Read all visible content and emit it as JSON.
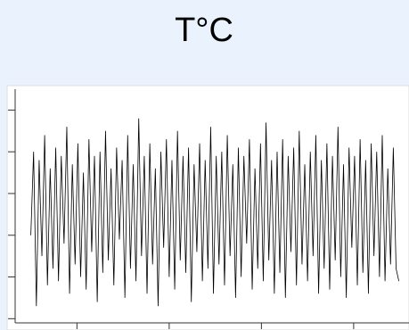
{
  "chart_data": {
    "type": "line",
    "title": "T°C",
    "color": "#000000",
    "x": [
      50,
      53,
      56,
      59,
      62,
      65,
      68,
      71,
      74,
      77,
      80,
      83,
      86,
      89,
      92,
      95,
      98,
      101,
      104,
      107,
      110,
      113,
      116,
      119,
      122,
      125,
      128,
      131,
      134,
      137,
      140,
      143,
      146,
      149,
      152,
      155,
      158,
      161,
      164,
      167,
      170,
      173,
      176,
      179,
      182,
      185,
      188,
      191,
      194,
      197,
      200,
      203,
      206,
      209,
      212,
      215,
      218,
      221,
      224,
      227,
      230,
      233,
      236,
      239,
      242,
      245,
      248,
      251,
      254,
      257,
      260,
      263,
      266,
      269,
      272,
      275,
      278,
      281,
      284,
      287,
      290,
      293,
      296,
      299,
      302,
      305,
      308,
      311,
      314,
      317,
      320,
      323,
      326,
      329,
      332,
      335,
      338,
      341,
      344,
      347,
      350,
      353,
      356,
      359,
      362,
      365,
      368,
      371,
      374,
      377,
      380,
      383,
      386,
      389,
      392,
      395,
      398,
      401,
      404,
      407,
      410,
      413,
      416,
      419,
      422,
      425,
      428,
      431,
      434,
      437,
      440,
      443,
      446,
      449
    ],
    "values": [
      2.0,
      4.0,
      0.3,
      3.8,
      1.5,
      4.4,
      0.8,
      3.6,
      1.2,
      4.1,
      0.9,
      3.9,
      1.8,
      4.6,
      0.6,
      3.7,
      1.3,
      4.2,
      1.0,
      3.5,
      0.7,
      4.3,
      1.6,
      3.9,
      0.4,
      4.0,
      1.1,
      4.5,
      1.4,
      3.6,
      0.8,
      4.1,
      1.9,
      3.8,
      0.5,
      4.4,
      1.2,
      3.7,
      0.9,
      4.8,
      1.5,
      3.9,
      0.6,
      4.2,
      1.3,
      3.6,
      0.3,
      4.0,
      1.7,
      4.3,
      1.0,
      3.8,
      0.7,
      4.5,
      1.4,
      3.9,
      1.1,
      4.1,
      0.4,
      3.7,
      1.6,
      4.2,
      0.9,
      3.8,
      1.2,
      4.6,
      0.6,
      3.9,
      1.3,
      4.0,
      0.8,
      4.4,
      1.5,
      3.7,
      0.5,
      4.1,
      1.0,
      3.9,
      1.8,
      4.3,
      0.7,
      3.6,
      1.2,
      4.2,
      0.9,
      4.7,
      1.4,
      3.8,
      0.6,
      4.0,
      1.1,
      4.3,
      0.5,
      3.9,
      1.6,
      4.1,
      0.8,
      4.5,
      1.3,
      3.7,
      0.9,
      4.0,
      1.5,
      4.4,
      0.6,
      3.8,
      1.2,
      4.2,
      0.7,
      3.9,
      1.4,
      4.6,
      1.0,
      3.7,
      0.5,
      4.1,
      1.7,
      3.9,
      0.8,
      4.3,
      1.1,
      3.8,
      0.6,
      4.2,
      1.5,
      4.0,
      1.0,
      4.4,
      0.9,
      3.6,
      1.3,
      4.1,
      1.2,
      0.9
    ],
    "xlim": [
      33,
      460
    ],
    "ylim": [
      -0.1,
      5.5
    ],
    "xticks": [
      100,
      200,
      300,
      400
    ],
    "yticks": [
      0,
      1,
      2,
      3,
      4,
      5
    ]
  }
}
